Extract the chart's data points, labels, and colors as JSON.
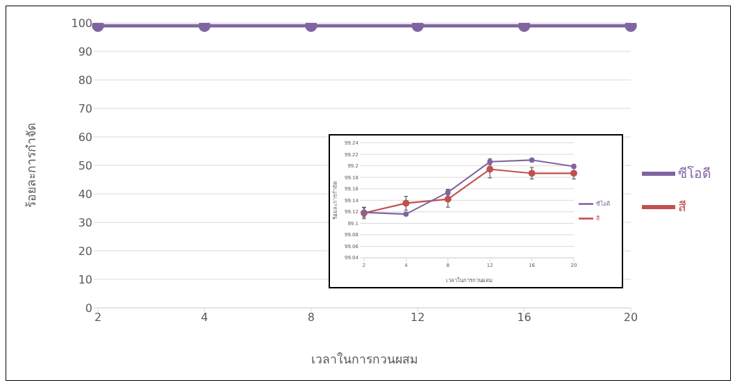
{
  "chart_data": [
    {
      "type": "line",
      "xlabel": "เวลาในการกวนผสม",
      "ylabel": "ร้อยละการกำจัด",
      "categories": [
        "2",
        "4",
        "8",
        "12",
        "16",
        "20"
      ],
      "series": [
        {
          "name": "สี",
          "color": "#c0504d",
          "values": [
            null,
            null,
            null,
            null,
            null,
            null
          ]
        },
        {
          "name": "ซีโอดี",
          "color": "#8064a2",
          "values": [
            99,
            99,
            99,
            99,
            99,
            99
          ]
        }
      ],
      "ylim": [
        0,
        100
      ],
      "yticks": [
        0,
        10,
        20,
        30,
        40,
        50,
        60,
        70,
        80,
        90,
        100
      ],
      "grid": "y",
      "legend": "right",
      "marker": "circle",
      "line_style": "solid"
    },
    {
      "type": "line",
      "xlabel": "เวลาในการกวนผสม",
      "ylabel": "ร้อยละการกำจัด",
      "categories": [
        "2",
        "4",
        "8",
        "12",
        "16",
        "20"
      ],
      "series": [
        {
          "name": "สี",
          "color": "#c0504d",
          "values": [
            99.118,
            99.135,
            99.142,
            99.194,
            99.187,
            99.187
          ],
          "errors": [
            0.01,
            0.012,
            0.014,
            0.015,
            0.01,
            0.01
          ]
        },
        {
          "name": "ซีโอดี",
          "color": "#8064a2",
          "values": [
            99.119,
            99.116,
            99.154,
            99.207,
            99.21,
            99.199
          ],
          "errors": [
            0.008,
            0.003,
            0.005,
            0.005,
            0.003,
            0.003
          ]
        }
      ],
      "ylim": [
        99.04,
        99.24
      ],
      "yticks": [
        99.04,
        99.06,
        99.08,
        99.1,
        99.12,
        99.14,
        99.16,
        99.18,
        99.2,
        99.22,
        99.24
      ],
      "grid": "y",
      "legend": "right",
      "marker": "circle",
      "line_style": "solid"
    }
  ]
}
